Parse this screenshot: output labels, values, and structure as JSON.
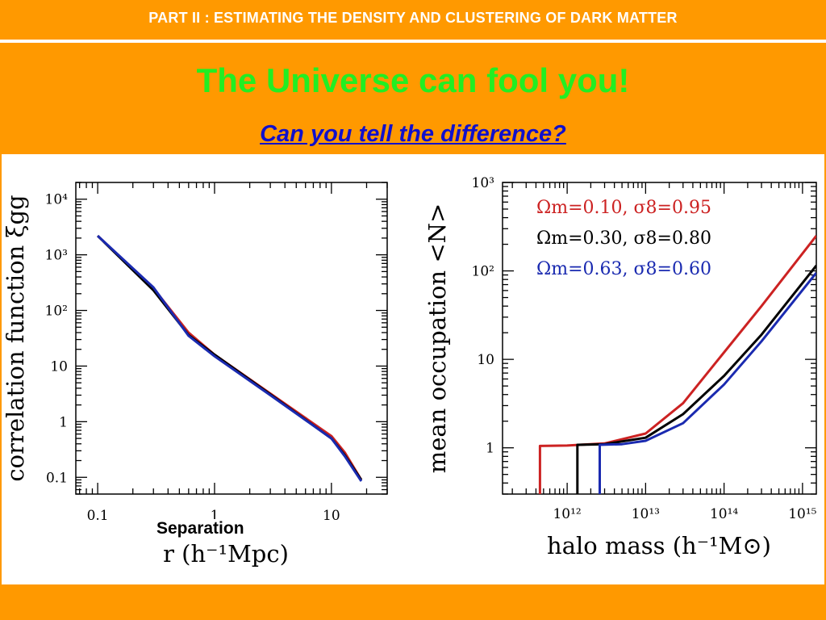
{
  "header": {
    "text": "PART II : ESTIMATING THE DENSITY AND CLUSTERING OF DARK MATTER"
  },
  "title": "The Universe can fool you!",
  "subtitle": "Can you tell the difference?",
  "annotation": "Separation",
  "colors": {
    "background": "#ff9900",
    "header_text": "#ffffff",
    "title": "#22ee22",
    "subtitle": "#1010cc",
    "red": "#cc2222",
    "black": "#000000",
    "blue": "#1a2ab0"
  },
  "chart_data": [
    {
      "type": "line",
      "x_scale": "log",
      "y_scale": "log",
      "xlim": [
        0.065,
        30
      ],
      "ylim": [
        0.05,
        20000
      ],
      "xlabel": "r (h⁻¹Mpc)",
      "ylabel": "correlation function ξgg",
      "x_ticks": [
        {
          "value": 0.1,
          "label": "0.1"
        },
        {
          "value": 1,
          "label": "1"
        },
        {
          "value": 10,
          "label": "10"
        }
      ],
      "y_ticks": [
        {
          "value": 0.1,
          "label": "0.1"
        },
        {
          "value": 1,
          "label": "1"
        },
        {
          "value": 10,
          "label": "10"
        },
        {
          "value": 100,
          "label": "10²"
        },
        {
          "value": 1000,
          "label": "10³"
        },
        {
          "value": 10000,
          "label": "10⁴"
        }
      ],
      "grid": false,
      "series": [
        {
          "color": "#cc2222",
          "points": [
            [
              0.1,
              2200
            ],
            [
              0.3,
              250
            ],
            [
              0.6,
              40
            ],
            [
              1.0,
              16
            ],
            [
              3,
              3.2
            ],
            [
              10,
              0.55
            ],
            [
              13,
              0.28
            ],
            [
              18,
              0.09
            ]
          ]
        },
        {
          "color": "#000000",
          "points": [
            [
              0.1,
              2200
            ],
            [
              0.3,
              230
            ],
            [
              0.6,
              36
            ],
            [
              1.0,
              16
            ],
            [
              3,
              3.1
            ],
            [
              10,
              0.5
            ],
            [
              13,
              0.25
            ],
            [
              18,
              0.09
            ]
          ]
        },
        {
          "color": "#1a2ab0",
          "points": [
            [
              0.1,
              2200
            ],
            [
              0.3,
              260
            ],
            [
              0.6,
              35
            ],
            [
              1.0,
              15
            ],
            [
              3,
              3.0
            ],
            [
              10,
              0.5
            ],
            [
              13,
              0.24
            ],
            [
              18,
              0.085
            ]
          ]
        }
      ]
    },
    {
      "type": "line",
      "x_scale": "log",
      "y_scale": "log",
      "xlim": [
        150000000000.0,
        1500000000000000.0
      ],
      "ylim": [
        0.3,
        1000
      ],
      "xlabel": "halo mass (h⁻¹M⊙)",
      "ylabel": "mean occupation <N>",
      "x_ticks": [
        {
          "value": 1000000000000.0,
          "label": "10¹²"
        },
        {
          "value": 10000000000000.0,
          "label": "10¹³"
        },
        {
          "value": 100000000000000.0,
          "label": "10¹⁴"
        },
        {
          "value": 1000000000000000.0,
          "label": "10¹⁵"
        }
      ],
      "y_ticks": [
        {
          "value": 1,
          "label": "1"
        },
        {
          "value": 10,
          "label": "10"
        },
        {
          "value": 100,
          "label": "10²"
        },
        {
          "value": 1000,
          "label": "10³"
        }
      ],
      "grid": false,
      "legend_position": "top-left",
      "series": [
        {
          "name": "Ωm=0.10, σ8=0.95",
          "color": "#cc2222",
          "points": [
            [
              450000000000.0,
              0.3
            ],
            [
              450000000000.0,
              1.05
            ],
            [
              1000000000000.0,
              1.06
            ],
            [
              3000000000000.0,
              1.12
            ],
            [
              10000000000000.0,
              1.45
            ],
            [
              30000000000000.0,
              3.2
            ],
            [
              100000000000000.0,
              12
            ],
            [
              300000000000000.0,
              40
            ],
            [
              1500000000000000.0,
              250
            ]
          ]
        },
        {
          "name": "Ωm=0.30, σ8=0.80",
          "color": "#000000",
          "points": [
            [
              1350000000000.0,
              0.3
            ],
            [
              1350000000000.0,
              1.08
            ],
            [
              3000000000000.0,
              1.1
            ],
            [
              10000000000000.0,
              1.3
            ],
            [
              30000000000000.0,
              2.4
            ],
            [
              100000000000000.0,
              6.5
            ],
            [
              300000000000000.0,
              19
            ],
            [
              1500000000000000.0,
              115
            ]
          ]
        },
        {
          "name": "Ωm=0.63, σ8=0.60",
          "color": "#1a2ab0",
          "points": [
            [
              2600000000000.0,
              0.3
            ],
            [
              2600000000000.0,
              1.08
            ],
            [
              5000000000000.0,
              1.1
            ],
            [
              10000000000000.0,
              1.2
            ],
            [
              30000000000000.0,
              1.9
            ],
            [
              100000000000000.0,
              5.2
            ],
            [
              300000000000000.0,
              16
            ],
            [
              1500000000000000.0,
              95
            ]
          ]
        }
      ]
    }
  ]
}
